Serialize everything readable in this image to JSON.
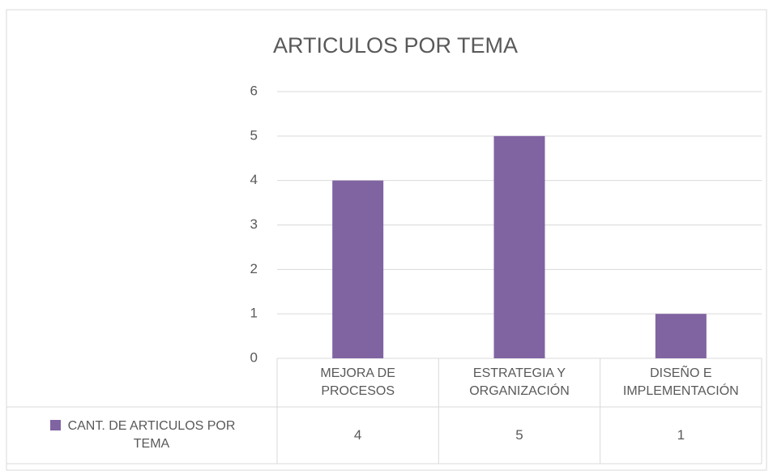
{
  "chart_data": {
    "type": "bar",
    "title": "ARTICULOS POR TEMA",
    "categories": [
      "MEJORA DE PROCESOS",
      "ESTRATEGIA Y ORGANIZACIÓN",
      "DISEÑO E IMPLEMENTACIÓN"
    ],
    "series": [
      {
        "name": "CANT. DE ARTICULOS POR TEMA",
        "color": "#8064a2",
        "values": [
          4,
          5,
          1
        ]
      }
    ],
    "ylim": [
      0,
      6
    ],
    "yticks": [
      0,
      1,
      2,
      3,
      4,
      5,
      6
    ],
    "grid": true
  }
}
